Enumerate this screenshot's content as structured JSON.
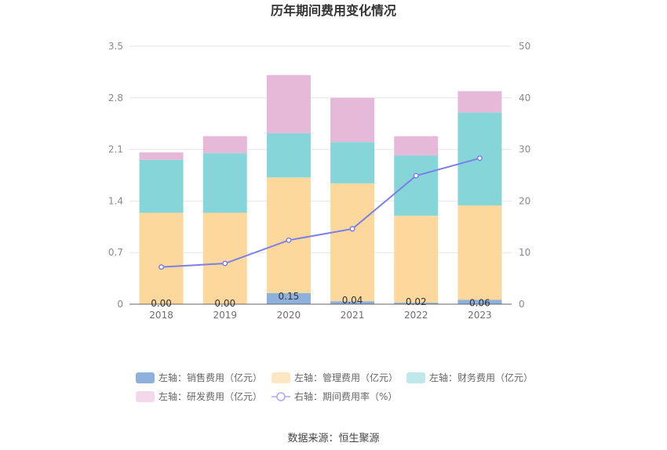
{
  "chart_data": {
    "type": "bar",
    "stacked": true,
    "title": "历年期间费用变化情况",
    "source": "数据来源：恒生聚源",
    "categories": [
      "2018",
      "2019",
      "2020",
      "2021",
      "2022",
      "2023"
    ],
    "left_axis": {
      "ylim": [
        0,
        3.5
      ],
      "ticks": [
        "0",
        "0.7",
        "1.4",
        "2.1",
        "2.8",
        "3.5"
      ]
    },
    "right_axis": {
      "ylim": [
        0,
        50
      ],
      "ticks": [
        "0",
        "10",
        "20",
        "30",
        "40",
        "50"
      ]
    },
    "series": [
      {
        "name": "左轴：销售费用（亿元）",
        "kind": "bar",
        "axis": "left",
        "color": "#8eb0dc",
        "values": [
          0.0,
          0.0,
          0.15,
          0.04,
          0.02,
          0.06
        ],
        "labels": [
          "0.00",
          "0.00",
          "0.15",
          "0.04",
          "0.02",
          "0.06"
        ]
      },
      {
        "name": "左轴：管理费用（亿元）",
        "kind": "bar",
        "axis": "left",
        "color": "#fdd89d",
        "values": [
          1.24,
          1.24,
          1.57,
          1.6,
          1.18,
          1.28
        ]
      },
      {
        "name": "左轴：财务费用（亿元）",
        "kind": "bar",
        "axis": "left",
        "color": "#86d5d9",
        "values": [
          0.72,
          0.81,
          0.6,
          0.56,
          0.82,
          1.26
        ]
      },
      {
        "name": "左轴：研发费用（亿元）",
        "kind": "bar",
        "axis": "left",
        "color": "#e7b9d8",
        "values": [
          0.1,
          0.23,
          0.79,
          0.6,
          0.26,
          0.29
        ]
      },
      {
        "name": "右轴：期间费用率（%）",
        "kind": "line",
        "axis": "right",
        "color": "#7b7fe8",
        "values": [
          7.2,
          7.9,
          12.4,
          14.6,
          24.9,
          28.3
        ]
      }
    ],
    "grid": true,
    "legend_position": "bottom"
  }
}
